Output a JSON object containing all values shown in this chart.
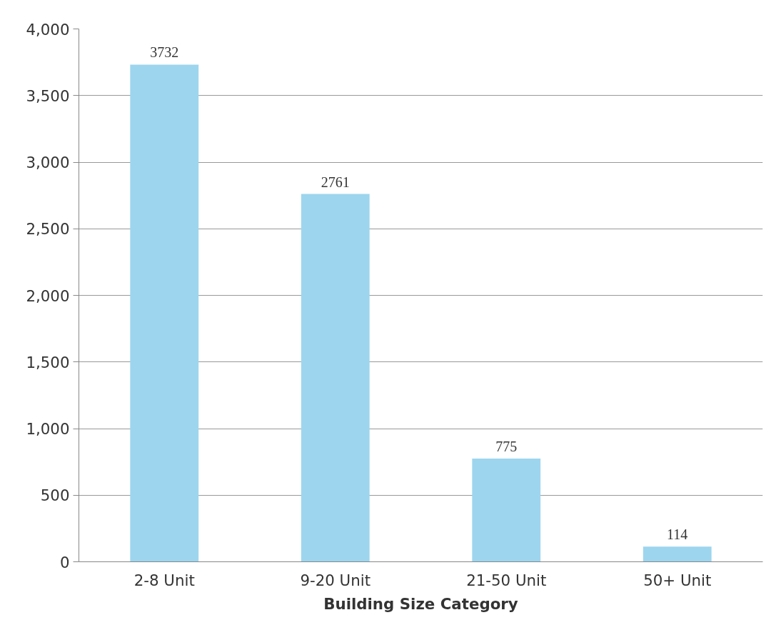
{
  "chart_data": {
    "type": "bar",
    "xlabel": "Building Size Category",
    "categories": [
      "2-8 Unit",
      "9-20 Unit",
      "21-50 Unit",
      "50+ Unit"
    ],
    "values": [
      3732,
      2761,
      775,
      114
    ],
    "color": "#9dd5ee",
    "ylim": [
      0,
      4000
    ],
    "yticks": [
      {
        "value": 0,
        "label": "0"
      },
      {
        "value": 500,
        "label": "500"
      },
      {
        "value": 1000,
        "label": "1,000"
      },
      {
        "value": 1500,
        "label": "1,500"
      },
      {
        "value": 2000,
        "label": "2,000"
      },
      {
        "value": 2500,
        "label": "2,500"
      },
      {
        "value": 3000,
        "label": "3,000"
      },
      {
        "value": 3500,
        "label": "3,500"
      },
      {
        "value": 4000,
        "label": "4,000"
      }
    ],
    "grid": "y",
    "data_labels": true
  }
}
